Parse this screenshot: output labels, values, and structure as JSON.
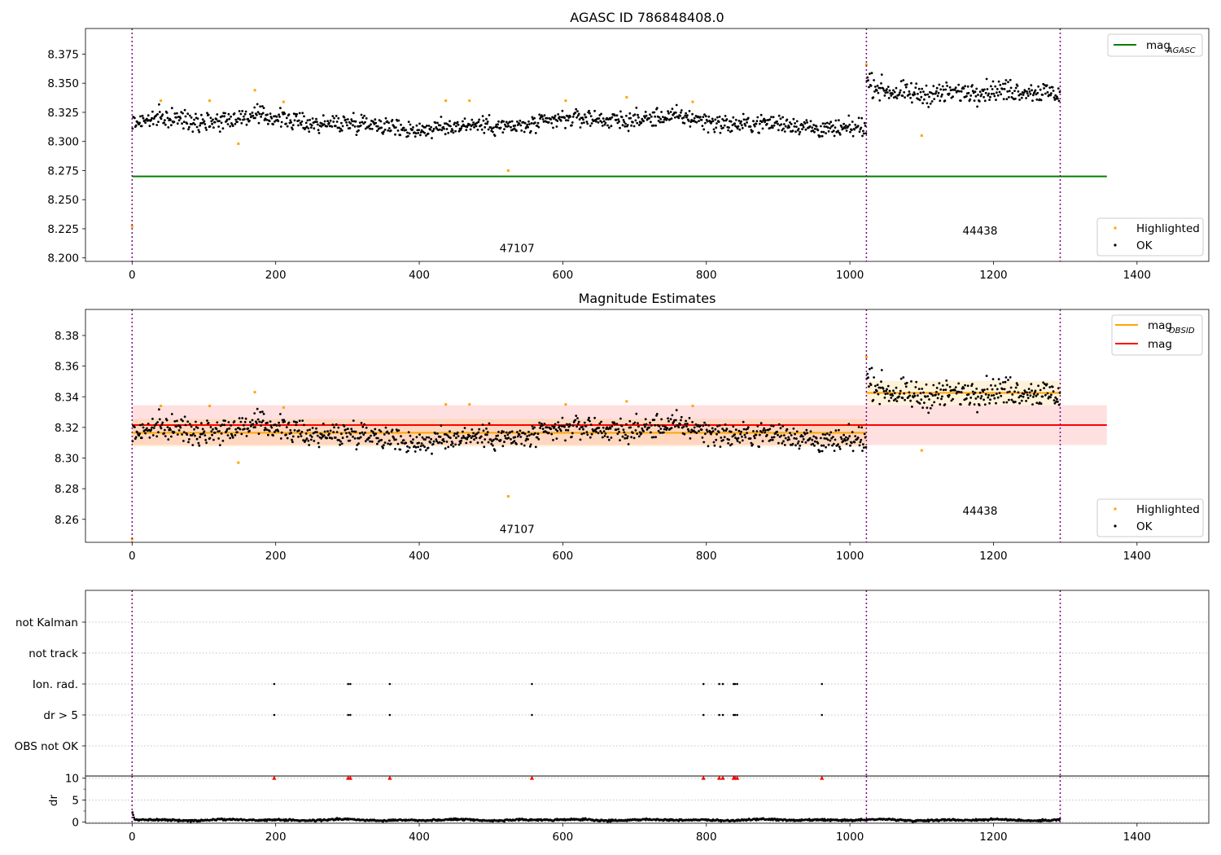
{
  "chart_data": [
    {
      "type": "scatter",
      "title": "AGASC ID 786848408.0",
      "xlim": [
        -65,
        1500
      ],
      "ylim": [
        8.197,
        8.397
      ],
      "xticks": [
        0,
        200,
        400,
        600,
        800,
        1000,
        1200,
        1400
      ],
      "yticks": [
        8.2,
        8.225,
        8.25,
        8.275,
        8.3,
        8.325,
        8.35,
        8.375
      ],
      "ytick_labels": [
        "8.200",
        "8.225",
        "8.250",
        "8.275",
        "8.300",
        "8.325",
        "8.350",
        "8.375"
      ],
      "obsid_boundaries": [
        0,
        1023,
        1293
      ],
      "obsid_labels": [
        {
          "text": "47107",
          "x": 512,
          "y": 8.205
        },
        {
          "text": "44438",
          "x": 1157,
          "y": 8.22
        }
      ],
      "lines": [
        {
          "name": "mag_AGASC",
          "color": "#008000",
          "y": 8.27,
          "x": [
            0,
            1358
          ]
        }
      ],
      "segments": [
        {
          "x": [
            0,
            1023
          ],
          "mean": 8.316,
          "spread": 0.007
        },
        {
          "x": [
            1023,
            1293
          ],
          "mean": 8.342,
          "spread": 0.008
        }
      ],
      "highlighted": [
        {
          "x": 0,
          "y": 8.227
        },
        {
          "x": 40,
          "y": 8.335
        },
        {
          "x": 108,
          "y": 8.335
        },
        {
          "x": 148,
          "y": 8.298
        },
        {
          "x": 171,
          "y": 8.344
        },
        {
          "x": 211,
          "y": 8.334
        },
        {
          "x": 437,
          "y": 8.335
        },
        {
          "x": 470,
          "y": 8.335
        },
        {
          "x": 524,
          "y": 8.275
        },
        {
          "x": 604,
          "y": 8.335
        },
        {
          "x": 689,
          "y": 8.338
        },
        {
          "x": 781,
          "y": 8.334
        },
        {
          "x": 1023,
          "y": 8.366
        },
        {
          "x": 1100,
          "y": 8.305
        }
      ],
      "legend": [
        {
          "label": "mag",
          "subscript": "AGASC",
          "kind": "line",
          "color": "#008000",
          "position": "top-right"
        },
        {
          "label": "Highlighted",
          "kind": "dot",
          "color": "#ffa500",
          "position": "bottom-right"
        },
        {
          "label": "OK",
          "kind": "dot",
          "color": "#000000",
          "position": "bottom-right"
        }
      ]
    },
    {
      "type": "scatter",
      "title": "Magnitude Estimates",
      "xlim": [
        -65,
        1500
      ],
      "ylim": [
        8.245,
        8.397
      ],
      "xticks": [
        0,
        200,
        400,
        600,
        800,
        1000,
        1200,
        1400
      ],
      "yticks": [
        8.26,
        8.28,
        8.3,
        8.32,
        8.34,
        8.36,
        8.38
      ],
      "ytick_labels": [
        "8.26",
        "8.28",
        "8.30",
        "8.32",
        "8.34",
        "8.36",
        "8.38"
      ],
      "obsid_boundaries": [
        0,
        1023,
        1293
      ],
      "obsid_labels": [
        {
          "text": "47107",
          "x": 512,
          "y": 8.251
        },
        {
          "text": "44438",
          "x": 1157,
          "y": 8.263
        }
      ],
      "lines": [
        {
          "name": "mag",
          "color": "#ff0000",
          "y": 8.3215,
          "x": [
            0,
            1358
          ],
          "band": [
            8.3085,
            8.3345
          ]
        },
        {
          "name": "mag_OBSID",
          "color": "#ffa500",
          "y": 8.3165,
          "x": [
            0,
            1023
          ],
          "band": [
            8.3075,
            8.3255
          ]
        },
        {
          "name": "mag_OBSID",
          "color": "#ffa500",
          "y": 8.3425,
          "x": [
            1023,
            1293
          ],
          "band": [
            8.3345,
            8.3505
          ]
        }
      ],
      "segments": [
        {
          "x": [
            0,
            1023
          ],
          "mean": 8.316,
          "spread": 0.007
        },
        {
          "x": [
            1023,
            1293
          ],
          "mean": 8.342,
          "spread": 0.008
        }
      ],
      "highlighted": [
        {
          "x": 0,
          "y": 8.247
        },
        {
          "x": 40,
          "y": 8.334
        },
        {
          "x": 108,
          "y": 8.334
        },
        {
          "x": 148,
          "y": 8.297
        },
        {
          "x": 171,
          "y": 8.343
        },
        {
          "x": 211,
          "y": 8.333
        },
        {
          "x": 437,
          "y": 8.335
        },
        {
          "x": 470,
          "y": 8.335
        },
        {
          "x": 524,
          "y": 8.275
        },
        {
          "x": 604,
          "y": 8.335
        },
        {
          "x": 689,
          "y": 8.337
        },
        {
          "x": 781,
          "y": 8.334
        },
        {
          "x": 1023,
          "y": 8.366
        },
        {
          "x": 1100,
          "y": 8.305
        }
      ],
      "legend": [
        {
          "label": "mag",
          "subscript": "OBSID",
          "kind": "line",
          "color": "#ffa500",
          "position": "top-right"
        },
        {
          "label": "mag",
          "kind": "line",
          "color": "#ff0000",
          "position": "top-right"
        },
        {
          "label": "Highlighted",
          "kind": "dot",
          "color": "#ffa500",
          "position": "bottom-right"
        },
        {
          "label": "OK",
          "kind": "dot",
          "color": "#000000",
          "position": "bottom-right"
        }
      ]
    },
    {
      "type": "scatter",
      "title": "",
      "xlim": [
        -65,
        1500
      ],
      "categories": [
        "not Kalman",
        "not track",
        "Ion. rad.",
        "dr > 5",
        "OBS not OK"
      ],
      "obsid_boundaries": [
        0,
        1023,
        1293
      ],
      "flags": {
        "Ion. rad.": [
          198,
          301,
          304,
          359,
          557,
          796,
          818,
          823,
          838,
          840,
          843,
          961
        ],
        "dr > 5": [
          198,
          301,
          304,
          359,
          557,
          796,
          818,
          823,
          838,
          840,
          843,
          961
        ],
        "not Kalman": [],
        "not track": [],
        "OBS not OK": []
      },
      "grid": true
    },
    {
      "type": "scatter",
      "title": "",
      "xlabel": "",
      "ylabel": "dr",
      "xlim": [
        -65,
        1500
      ],
      "ylim": [
        -0.3,
        10.5
      ],
      "xticks": [
        0,
        200,
        400,
        600,
        800,
        1000,
        1200,
        1400
      ],
      "yticks": [
        0,
        5,
        10
      ],
      "obsid_boundaries": [
        0,
        1023,
        1293
      ],
      "clipped_markers": {
        "color": "#ff0000",
        "y": 10,
        "x": [
          198,
          301,
          304,
          359,
          557,
          796,
          818,
          823,
          838,
          840,
          843,
          961
        ]
      },
      "dr_series": {
        "x": [
          0,
          1293
        ],
        "mean": 0.45,
        "spread": 0.25
      }
    }
  ]
}
